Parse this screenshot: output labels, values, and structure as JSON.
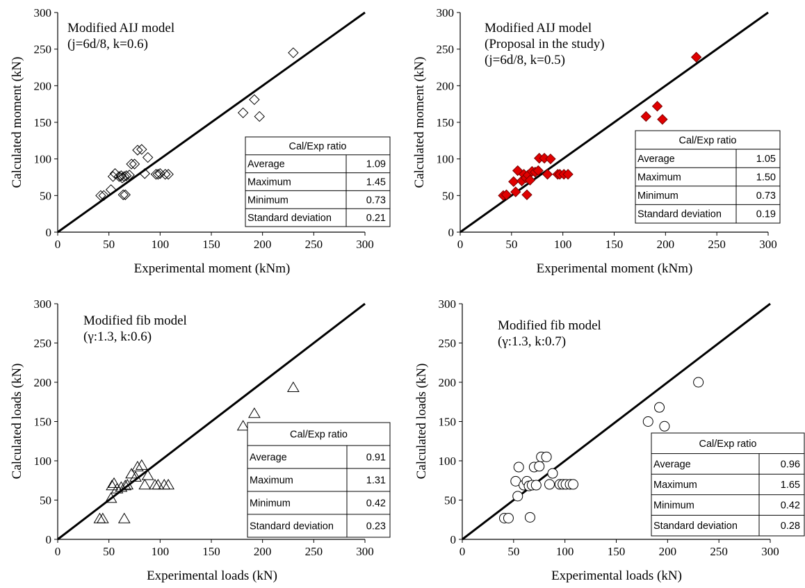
{
  "chart_data": [
    {
      "type": "scatter",
      "xlabel": "Experimental moment (kNm)",
      "ylabel": "Calculated moment (kN)",
      "xlim": [
        0,
        300
      ],
      "ylim": [
        0,
        300
      ],
      "xticks": [
        "0",
        "50",
        "100",
        "150",
        "200",
        "250",
        "300"
      ],
      "yticks": [
        "0",
        "50",
        "100",
        "150",
        "200",
        "250",
        "300"
      ],
      "annotation": [
        "Modified AIJ model",
        "(j=6d/8, k=0.6)"
      ],
      "marker": "diamond-open",
      "marker_color": "#000000",
      "reference_line": "y = x",
      "table": {
        "header": "Cal/Exp ratio",
        "rows": [
          {
            "label": "Average",
            "value": "1.09"
          },
          {
            "label": "Maximum",
            "value": "1.45"
          },
          {
            "label": "Minimum",
            "value": "0.73"
          },
          {
            "label": "Standard deviation",
            "value": "0.21"
          }
        ]
      },
      "points": [
        [
          42,
          50
        ],
        [
          45,
          50
        ],
        [
          52,
          58
        ],
        [
          54,
          76
        ],
        [
          56,
          80
        ],
        [
          60,
          76
        ],
        [
          62,
          77
        ],
        [
          63,
          74
        ],
        [
          65,
          76
        ],
        [
          67,
          77
        ],
        [
          64,
          51
        ],
        [
          66,
          51
        ],
        [
          70,
          78
        ],
        [
          72,
          93
        ],
        [
          75,
          93
        ],
        [
          78,
          112
        ],
        [
          82,
          113
        ],
        [
          85,
          80
        ],
        [
          88,
          102
        ],
        [
          96,
          79
        ],
        [
          98,
          79
        ],
        [
          100,
          80
        ],
        [
          105,
          79
        ],
        [
          108,
          79
        ],
        [
          181,
          163
        ],
        [
          192,
          181
        ],
        [
          197,
          158
        ],
        [
          230,
          245
        ]
      ]
    },
    {
      "type": "scatter",
      "xlabel": "Experimental moment (kNm)",
      "ylabel": "Calculated moment (kN)",
      "xlim": [
        0,
        300
      ],
      "ylim": [
        0,
        300
      ],
      "xticks": [
        "0",
        "50",
        "100",
        "150",
        "200",
        "250",
        "300"
      ],
      "yticks": [
        "0",
        "50",
        "100",
        "150",
        "200",
        "250",
        "300"
      ],
      "annotation": [
        "Modified AIJ model",
        "(Proposal in the study)",
        "(j=6d/8, k=0.5)"
      ],
      "marker": "diamond-filled",
      "marker_color": "#e00000",
      "reference_line": "y = x",
      "table": {
        "header": "Cal/Exp ratio",
        "rows": [
          {
            "label": "Average",
            "value": "1.05"
          },
          {
            "label": "Maximum",
            "value": "1.50"
          },
          {
            "label": "Minimum",
            "value": "0.73"
          },
          {
            "label": "Standard deviation",
            "value": "0.19"
          }
        ]
      },
      "points": [
        [
          42,
          50
        ],
        [
          45,
          51
        ],
        [
          52,
          69
        ],
        [
          54,
          55
        ],
        [
          56,
          84
        ],
        [
          60,
          70
        ],
        [
          62,
          79
        ],
        [
          64,
          74
        ],
        [
          66,
          78
        ],
        [
          65,
          51
        ],
        [
          68,
          71
        ],
        [
          70,
          83
        ],
        [
          73,
          82
        ],
        [
          76,
          84
        ],
        [
          77,
          101
        ],
        [
          82,
          101
        ],
        [
          85,
          79
        ],
        [
          88,
          100
        ],
        [
          95,
          79
        ],
        [
          97,
          79
        ],
        [
          101,
          79
        ],
        [
          105,
          79
        ],
        [
          181,
          158
        ],
        [
          192,
          172
        ],
        [
          197,
          154
        ],
        [
          230,
          239
        ]
      ]
    },
    {
      "type": "scatter",
      "xlabel": "Experimental loads (kN)",
      "ylabel": "Calculated loads (kN)",
      "xlim": [
        0,
        300
      ],
      "ylim": [
        0,
        300
      ],
      "xticks": [
        "0",
        "50",
        "100",
        "150",
        "200",
        "250",
        "300"
      ],
      "yticks": [
        "0",
        "50",
        "100",
        "150",
        "200",
        "250",
        "300"
      ],
      "annotation": [
        "Modified fib model",
        "(γ:1.3, k:0.6)"
      ],
      "marker": "triangle-open",
      "marker_color": "#000000",
      "reference_line": "y = x",
      "table": {
        "header": "Cal/Exp ratio",
        "rows": [
          {
            "label": "Average",
            "value": "0.91"
          },
          {
            "label": "Maximum",
            "value": "1.31"
          },
          {
            "label": "Minimum",
            "value": "0.42"
          },
          {
            "label": "Standard deviation",
            "value": "0.23"
          }
        ]
      },
      "points": [
        [
          41,
          26
        ],
        [
          44,
          26
        ],
        [
          52,
          52
        ],
        [
          53,
          68
        ],
        [
          55,
          71
        ],
        [
          58,
          64
        ],
        [
          62,
          66
        ],
        [
          66,
          68
        ],
        [
          65,
          26
        ],
        [
          68,
          69
        ],
        [
          72,
          83
        ],
        [
          76,
          79
        ],
        [
          78,
          92
        ],
        [
          82,
          94
        ],
        [
          85,
          69
        ],
        [
          88,
          81
        ],
        [
          95,
          69
        ],
        [
          98,
          69
        ],
        [
          104,
          69
        ],
        [
          108,
          69
        ],
        [
          181,
          144
        ],
        [
          192,
          160
        ],
        [
          197,
          139
        ],
        [
          230,
          193
        ]
      ]
    },
    {
      "type": "scatter",
      "xlabel": "Experimental loads (kN)",
      "ylabel": "Calculated loads (kN)",
      "xlim": [
        0,
        300
      ],
      "ylim": [
        0,
        300
      ],
      "xticks": [
        "0",
        "50",
        "100",
        "150",
        "200",
        "250",
        "300"
      ],
      "yticks": [
        "0",
        "50",
        "100",
        "150",
        "200",
        "250",
        "300"
      ],
      "annotation": [
        "Modified fib model",
        "(γ:1.3, k:0.7)"
      ],
      "marker": "circle-open",
      "marker_color": "#000000",
      "reference_line": "y = x",
      "table": {
        "header": "Cal/Exp ratio",
        "rows": [
          {
            "label": "Average",
            "value": "0.96"
          },
          {
            "label": "Maximum",
            "value": "1.65"
          },
          {
            "label": "Minimum",
            "value": "0.42"
          },
          {
            "label": "Standard deviation",
            "value": "0.28"
          }
        ]
      },
      "points": [
        [
          41,
          27
        ],
        [
          45,
          27
        ],
        [
          52,
          74
        ],
        [
          54,
          55
        ],
        [
          55,
          92
        ],
        [
          60,
          69
        ],
        [
          63,
          74
        ],
        [
          65,
          68
        ],
        [
          66,
          28
        ],
        [
          68,
          69
        ],
        [
          70,
          92
        ],
        [
          72,
          69
        ],
        [
          75,
          93
        ],
        [
          77,
          105
        ],
        [
          82,
          105
        ],
        [
          85,
          70
        ],
        [
          88,
          84
        ],
        [
          95,
          70
        ],
        [
          98,
          70
        ],
        [
          101,
          70
        ],
        [
          105,
          70
        ],
        [
          108,
          70
        ],
        [
          181,
          150
        ],
        [
          192,
          168
        ],
        [
          197,
          144
        ],
        [
          230,
          200
        ]
      ]
    }
  ]
}
